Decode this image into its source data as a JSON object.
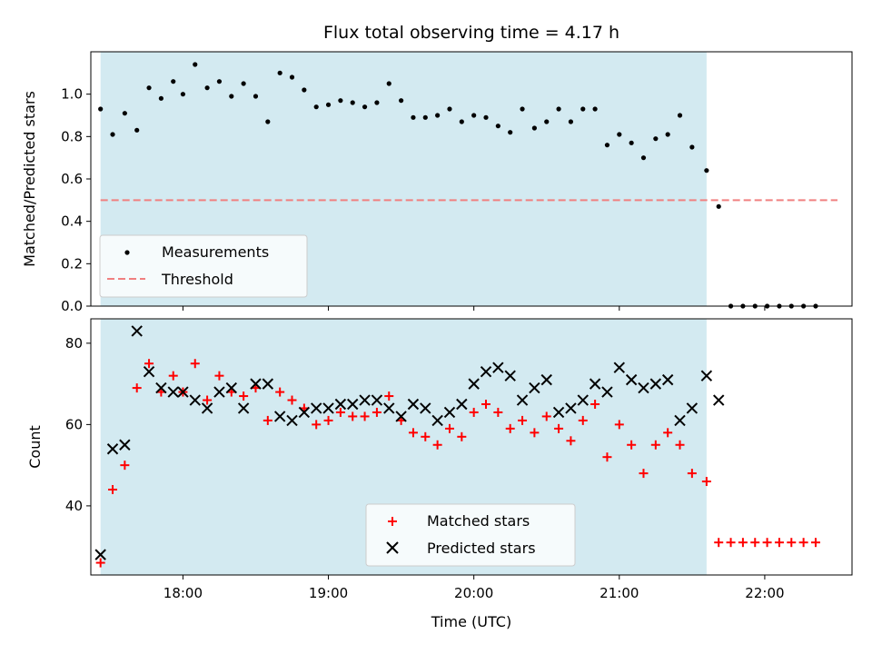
{
  "chart_data": [
    {
      "type": "scatter",
      "title": "Flux total observing time = 4.17 h",
      "ylabel": "Matched/Predicted stars",
      "xlabel": "",
      "xlim": [
        "17:22",
        "22:36"
      ],
      "ylim": [
        0,
        1.2
      ],
      "yticks": [
        0.0,
        0.2,
        0.4,
        0.6,
        0.8,
        1.0
      ],
      "ytick_labels": [
        "0.0",
        "0.2",
        "0.4",
        "0.6",
        "0.8",
        "1.0"
      ],
      "xticks": [
        "18:00",
        "19:00",
        "20:00",
        "21:00",
        "22:00"
      ],
      "show_xtick_labels": false,
      "observing_window": [
        "17:26",
        "21:36"
      ],
      "observing_window_color": "#d3eaf1",
      "legend": {
        "position": "lower-left",
        "entries": [
          "Measurements",
          "Threshold"
        ]
      },
      "series": [
        {
          "name": "Measurements",
          "marker": "dot",
          "color": "#000000",
          "x": [
            "17:26",
            "17:31",
            "17:36",
            "17:41",
            "17:46",
            "17:51",
            "17:56",
            "18:00",
            "18:05",
            "18:10",
            "18:15",
            "18:20",
            "18:25",
            "18:30",
            "18:35",
            "18:40",
            "18:45",
            "18:50",
            "18:55",
            "19:00",
            "19:05",
            "19:10",
            "19:15",
            "19:20",
            "19:25",
            "19:30",
            "19:35",
            "19:40",
            "19:45",
            "19:50",
            "19:55",
            "20:00",
            "20:05",
            "20:10",
            "20:15",
            "20:20",
            "20:25",
            "20:30",
            "20:35",
            "20:40",
            "20:45",
            "20:50",
            "20:55",
            "21:00",
            "21:05",
            "21:10",
            "21:15",
            "21:20",
            "21:25",
            "21:30",
            "21:36",
            "21:41",
            "21:46",
            "21:51",
            "21:56",
            "22:01",
            "22:06",
            "22:11",
            "22:16",
            "22:21"
          ],
          "y": [
            0.93,
            0.81,
            0.91,
            0.83,
            1.03,
            0.98,
            1.06,
            1.0,
            1.14,
            1.03,
            1.06,
            0.99,
            1.05,
            0.99,
            0.87,
            1.1,
            1.08,
            1.02,
            0.94,
            0.95,
            0.97,
            0.96,
            0.94,
            0.96,
            1.05,
            0.97,
            0.89,
            0.89,
            0.9,
            0.93,
            0.87,
            0.9,
            0.89,
            0.85,
            0.82,
            0.93,
            0.84,
            0.87,
            0.93,
            0.87,
            0.93,
            0.93,
            0.76,
            0.81,
            0.77,
            0.7,
            0.79,
            0.81,
            0.9,
            0.75,
            0.64,
            0.47,
            0.0,
            0.0,
            0.0,
            0.0,
            0.0,
            0.0,
            0.0,
            0.0
          ]
        },
        {
          "name": "Threshold",
          "marker": "dashed-line",
          "color": "#f08080",
          "x": [
            "17:26",
            "22:30"
          ],
          "y": [
            0.5,
            0.5
          ]
        }
      ]
    },
    {
      "type": "scatter",
      "title": "",
      "ylabel": "Count",
      "xlabel": "Time (UTC)",
      "xlim": [
        "17:22",
        "22:36"
      ],
      "ylim": [
        23,
        86
      ],
      "yticks": [
        40,
        60,
        80
      ],
      "ytick_labels": [
        "40",
        "60",
        "80"
      ],
      "xticks": [
        "18:00",
        "19:00",
        "20:00",
        "21:00",
        "22:00"
      ],
      "xtick_labels": [
        "18:00",
        "19:00",
        "20:00",
        "21:00",
        "22:00"
      ],
      "observing_window": [
        "17:26",
        "21:36"
      ],
      "observing_window_color": "#d3eaf1",
      "legend": {
        "position": "lower-center",
        "entries": [
          "Matched stars",
          "Predicted stars"
        ]
      },
      "series": [
        {
          "name": "Matched stars",
          "marker": "plus",
          "color": "#ff0000",
          "x": [
            "17:26",
            "17:31",
            "17:36",
            "17:41",
            "17:46",
            "17:51",
            "17:56",
            "18:00",
            "18:05",
            "18:10",
            "18:15",
            "18:20",
            "18:25",
            "18:30",
            "18:35",
            "18:40",
            "18:45",
            "18:50",
            "18:55",
            "19:00",
            "19:05",
            "19:10",
            "19:15",
            "19:20",
            "19:25",
            "19:30",
            "19:35",
            "19:40",
            "19:45",
            "19:50",
            "19:55",
            "20:00",
            "20:05",
            "20:10",
            "20:15",
            "20:20",
            "20:25",
            "20:30",
            "20:35",
            "20:40",
            "20:45",
            "20:50",
            "20:55",
            "21:00",
            "21:05",
            "21:10",
            "21:15",
            "21:20",
            "21:25",
            "21:30",
            "21:36",
            "21:41",
            "21:46",
            "21:51",
            "21:56",
            "22:01",
            "22:06",
            "22:11",
            "22:16",
            "22:21"
          ],
          "y": [
            26,
            44,
            50,
            69,
            75,
            68,
            72,
            68,
            75,
            66,
            72,
            68,
            67,
            69,
            61,
            68,
            66,
            64,
            60,
            61,
            63,
            62,
            62,
            63,
            67,
            61,
            58,
            57,
            55,
            59,
            57,
            63,
            65,
            63,
            59,
            61,
            58,
            62,
            59,
            56,
            61,
            65,
            52,
            60,
            55,
            48,
            55,
            58,
            55,
            48,
            46,
            31,
            31,
            31,
            31,
            31,
            31,
            31,
            31,
            31
          ]
        },
        {
          "name": "Predicted stars",
          "marker": "x",
          "color": "#000000",
          "x": [
            "17:26",
            "17:31",
            "17:36",
            "17:41",
            "17:46",
            "17:51",
            "17:56",
            "18:00",
            "18:05",
            "18:10",
            "18:15",
            "18:20",
            "18:25",
            "18:30",
            "18:35",
            "18:40",
            "18:45",
            "18:50",
            "18:55",
            "19:00",
            "19:05",
            "19:10",
            "19:15",
            "19:20",
            "19:25",
            "19:30",
            "19:35",
            "19:40",
            "19:45",
            "19:50",
            "19:55",
            "20:00",
            "20:05",
            "20:10",
            "20:15",
            "20:20",
            "20:25",
            "20:30",
            "20:35",
            "20:40",
            "20:45",
            "20:50",
            "20:55",
            "21:00",
            "21:05",
            "21:10",
            "21:15",
            "21:20",
            "21:25",
            "21:30",
            "21:36",
            "21:41"
          ],
          "y": [
            28,
            54,
            55,
            83,
            73,
            69,
            68,
            68,
            66,
            64,
            68,
            69,
            64,
            70,
            70,
            62,
            61,
            63,
            64,
            64,
            65,
            65,
            66,
            66,
            64,
            62,
            65,
            64,
            61,
            63,
            65,
            70,
            73,
            74,
            72,
            66,
            69,
            71,
            63,
            64,
            66,
            70,
            68,
            74,
            71,
            69,
            70,
            71,
            61,
            64,
            72,
            66
          ]
        }
      ]
    }
  ]
}
